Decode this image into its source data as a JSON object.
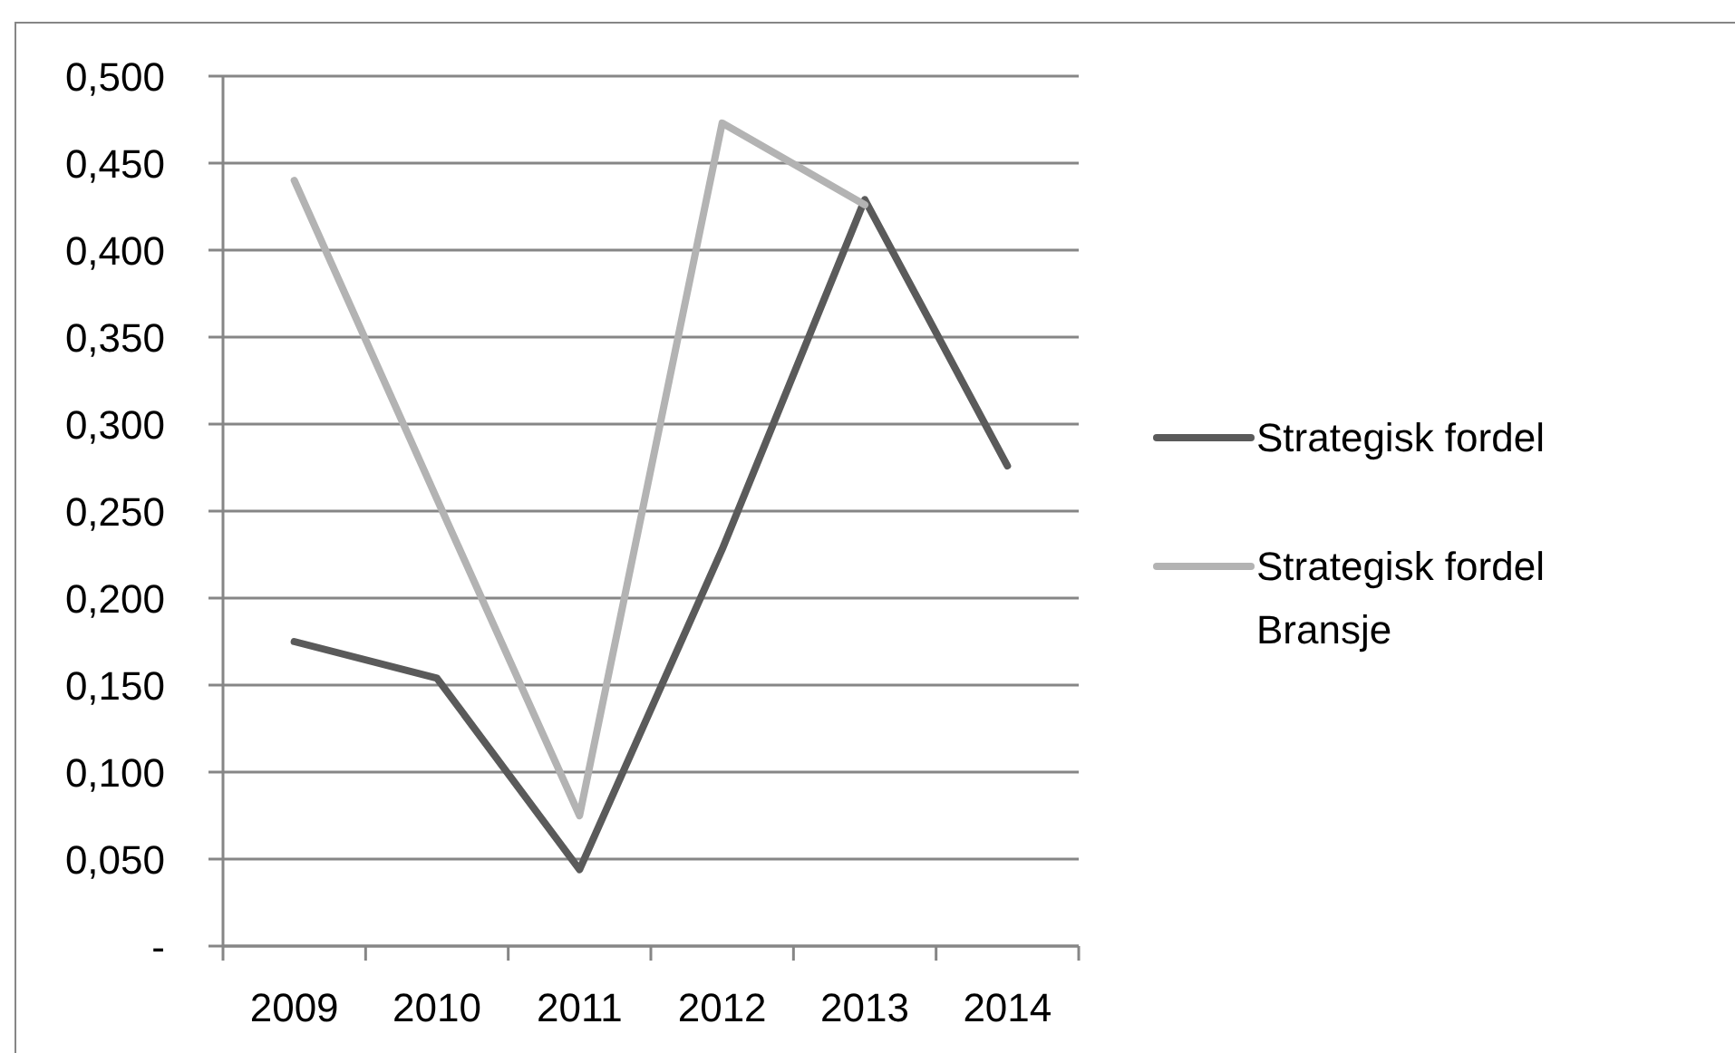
{
  "chart_data": {
    "type": "line",
    "categories": [
      "2009",
      "2010",
      "2011",
      "2012",
      "2013",
      "2014"
    ],
    "series": [
      {
        "name": "Strategisk fordel",
        "color": "#5a5a5a",
        "values": [
          0.175,
          0.154,
          0.044,
          0.228,
          0.429,
          0.276
        ]
      },
      {
        "name": "Strategisk fordel Bransje",
        "color": "#b3b3b3",
        "values": [
          0.44,
          0.257,
          0.075,
          0.473,
          0.426,
          null
        ]
      }
    ],
    "ylim": [
      0,
      0.5
    ],
    "yticks": [
      {
        "value": 0,
        "label": "-"
      },
      {
        "value": 0.05,
        "label": "0,050"
      },
      {
        "value": 0.1,
        "label": "0,100"
      },
      {
        "value": 0.15,
        "label": "0,150"
      },
      {
        "value": 0.2,
        "label": "0,200"
      },
      {
        "value": 0.25,
        "label": "0,250"
      },
      {
        "value": 0.3,
        "label": "0,300"
      },
      {
        "value": 0.35,
        "label": "0,350"
      },
      {
        "value": 0.4,
        "label": "0,400"
      },
      {
        "value": 0.45,
        "label": "0,450"
      },
      {
        "value": 0.5,
        "label": "0,500"
      }
    ],
    "grid": "y",
    "legend": "right",
    "marker": "none",
    "line_style": "solid"
  }
}
